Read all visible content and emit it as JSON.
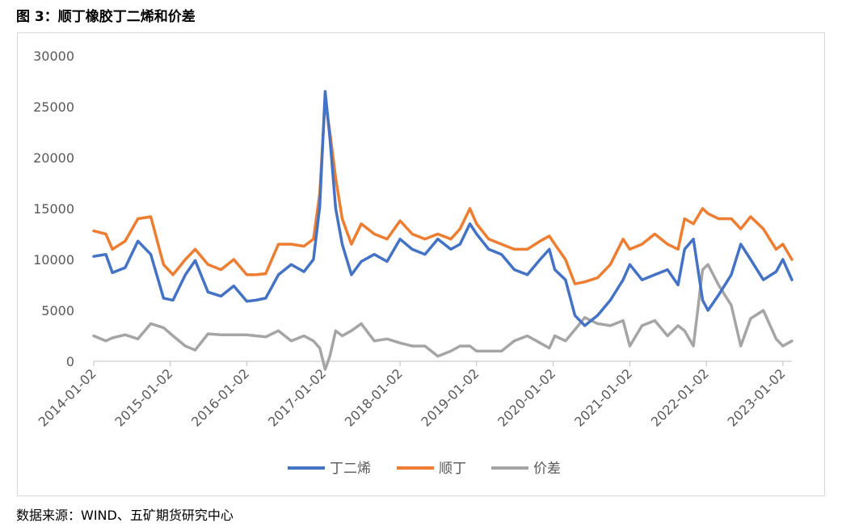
{
  "figure": {
    "title": "图 3：顺丁橡胶丁二烯和价差",
    "source": "数据来源：WIND、五矿期货研究中心"
  },
  "chart_data": {
    "type": "line",
    "title": "",
    "xlabel": "",
    "ylabel": "",
    "ylim": [
      0,
      30000
    ],
    "yticks": [
      0,
      5000,
      10000,
      15000,
      20000,
      25000,
      30000
    ],
    "xticks": [
      "2014-01-02",
      "2015-01-02",
      "2016-01-02",
      "2017-01-02",
      "2018-01-02",
      "2019-01-02",
      "2020-01-02",
      "2021-01-02",
      "2022-01-02",
      "2023-01-02"
    ],
    "x_range": [
      "2014-01-02",
      "2023-02-14"
    ],
    "grid": false,
    "legend_position": "bottom",
    "colors": {
      "丁二烯": "#4472c4",
      "顺丁": "#ed7d31",
      "价差": "#a5a5a5"
    },
    "x": [
      "2014-01-02",
      "2014-03-01",
      "2014-04-01",
      "2014-06-01",
      "2014-08-01",
      "2014-10-01",
      "2014-12-01",
      "2015-01-15",
      "2015-03-15",
      "2015-05-01",
      "2015-07-01",
      "2015-09-01",
      "2015-11-01",
      "2016-01-02",
      "2016-02-15",
      "2016-04-01",
      "2016-06-01",
      "2016-08-01",
      "2016-10-01",
      "2016-11-15",
      "2016-12-15",
      "2017-01-10",
      "2017-02-01",
      "2017-03-01",
      "2017-04-01",
      "2017-05-15",
      "2017-07-01",
      "2017-09-01",
      "2017-11-01",
      "2018-01-02",
      "2018-03-01",
      "2018-05-01",
      "2018-07-01",
      "2018-09-01",
      "2018-10-15",
      "2018-12-01",
      "2019-01-02",
      "2019-03-01",
      "2019-05-01",
      "2019-07-01",
      "2019-09-01",
      "2019-11-01",
      "2019-12-15",
      "2020-01-10",
      "2020-03-01",
      "2020-04-15",
      "2020-06-01",
      "2020-08-01",
      "2020-10-01",
      "2020-12-01",
      "2021-01-02",
      "2021-03-01",
      "2021-05-01",
      "2021-07-01",
      "2021-08-20",
      "2021-09-20",
      "2021-11-01",
      "2021-12-15",
      "2022-01-10",
      "2022-03-01",
      "2022-05-01",
      "2022-06-15",
      "2022-08-01",
      "2022-10-01",
      "2022-12-01",
      "2023-01-02",
      "2023-02-14"
    ],
    "series": [
      {
        "name": "丁二烯",
        "values": [
          10300,
          10500,
          8700,
          9200,
          11800,
          10500,
          6200,
          6000,
          8500,
          9900,
          6800,
          6400,
          7400,
          5900,
          6000,
          6200,
          8500,
          9500,
          8800,
          10000,
          15200,
          26500,
          22000,
          15000,
          11500,
          8500,
          9800,
          10500,
          9800,
          12000,
          11000,
          10500,
          12000,
          11000,
          11500,
          13500,
          12500,
          11000,
          10500,
          9000,
          8500,
          10000,
          11000,
          9000,
          8000,
          4500,
          3500,
          4500,
          6000,
          8000,
          9500,
          8000,
          8500,
          9000,
          7500,
          11000,
          12000,
          6000,
          5000,
          6500,
          8500,
          11500,
          10000,
          8000,
          8800,
          10000,
          8000
        ]
      },
      {
        "name": "顺丁",
        "values": [
          12800,
          12500,
          11000,
          11800,
          14000,
          14200,
          9500,
          8500,
          10000,
          11000,
          9500,
          9000,
          10000,
          8500,
          8500,
          8600,
          11500,
          11500,
          11300,
          12000,
          16500,
          25700,
          22500,
          18000,
          14000,
          11500,
          13500,
          12500,
          12000,
          13800,
          12500,
          12000,
          12500,
          12000,
          13000,
          15000,
          13500,
          12000,
          11500,
          11000,
          11000,
          11800,
          12300,
          11500,
          10000,
          7600,
          7800,
          8200,
          9500,
          12000,
          11000,
          11500,
          12500,
          11500,
          11000,
          14000,
          13500,
          15000,
          14500,
          14000,
          14000,
          13000,
          14200,
          13000,
          11000,
          11500,
          10000
        ]
      },
      {
        "name": "价差",
        "values": [
          2500,
          2000,
          2300,
          2600,
          2200,
          3700,
          3300,
          2500,
          1500,
          1100,
          2700,
          2600,
          2600,
          2600,
          2500,
          2400,
          3000,
          2000,
          2500,
          2000,
          1300,
          -800,
          500,
          3000,
          2500,
          3000,
          3700,
          2000,
          2200,
          1800,
          1500,
          1500,
          500,
          1000,
          1500,
          1500,
          1000,
          1000,
          1000,
          2000,
          2500,
          1800,
          1300,
          2500,
          2000,
          3100,
          4300,
          3700,
          3500,
          4000,
          1500,
          3500,
          4000,
          2500,
          3500,
          3000,
          1500,
          9000,
          9500,
          7500,
          5500,
          1500,
          4200,
          5000,
          2200,
          1500,
          2000
        ]
      }
    ]
  }
}
